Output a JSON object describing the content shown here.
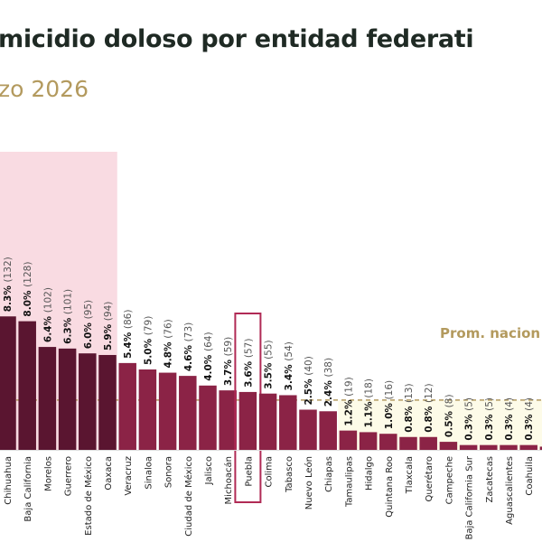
{
  "title": "micidio doloso por entidad federati",
  "subtitle": "zo 2026",
  "chart_data": {
    "type": "bar",
    "title": "micidio doloso por entidad federati",
    "subtitle": "zo 2026",
    "categories": [
      "Chihuahua",
      "Baja California",
      "Morelos",
      "Guerrero",
      "Estado de México",
      "Oaxaca",
      "Veracruz",
      "Sinaloa",
      "Sonora",
      "Ciudad de México",
      "Jalisco",
      "Michoacán",
      "Puebla",
      "Colima",
      "Tabasco",
      "Nuevo León",
      "Chiapas",
      "Tamaulipas",
      "Hidalgo",
      "Quintana Roo",
      "Tlaxcala",
      "Querétaro",
      "Campeche",
      "Baja California Sur",
      "Zacatecas",
      "Aguascalientes",
      "Coahuila",
      ""
    ],
    "values": [
      8.3,
      8.0,
      6.4,
      6.3,
      6.0,
      5.9,
      5.4,
      5.0,
      4.8,
      4.6,
      4.0,
      3.7,
      3.6,
      3.5,
      3.4,
      2.5,
      2.4,
      1.2,
      1.1,
      1.0,
      0.8,
      0.8,
      0.5,
      0.3,
      0.3,
      0.3,
      0.3,
      0.2
    ],
    "pct_labels": [
      "8.3%",
      "8.0%",
      "6.4%",
      "6.3%",
      "6.0%",
      "5.9%",
      "5.4%",
      "5.0%",
      "4.8%",
      "4.6%",
      "4.0%",
      "3.7%",
      "3.6%",
      "3.5%",
      "3.4%",
      "2.5%",
      "2.4%",
      "1.2%",
      "1.1%",
      "1.0%",
      "0.8%",
      "0.8%",
      "0.5%",
      "0.3%",
      "0.3%",
      "0.3%",
      "0.3%",
      ""
    ],
    "count_labels": [
      "(132)",
      "(128)",
      "(102)",
      "(101)",
      "(95)",
      "(94)",
      "(86)",
      "(79)",
      "(76)",
      "(73)",
      "(64)",
      "(59)",
      "(57)",
      "(55)",
      "(54)",
      "(40)",
      "(38)",
      "(19)",
      "(18)",
      "(16)",
      "(13)",
      "(12)",
      "(8)",
      "(5)",
      "(5)",
      "(4)",
      "(4)",
      ""
    ],
    "highlight_top_group": [
      "Chihuahua",
      "Baja California",
      "Morelos",
      "Guerrero",
      "Estado de México",
      "Oaxaca"
    ],
    "highlighted_category": "Puebla",
    "average": {
      "label": "Prom. nacion",
      "value": 3.1
    },
    "ylim": [
      0,
      18.5
    ],
    "grid": false,
    "colors": {
      "top_group": "#5a1530",
      "others": "#8b2346",
      "top_band": "#f9dbe2",
      "below_avg_band": "#fdfbe8",
      "average_line": "#b39a5e",
      "highlight_frame": "#b02a55"
    }
  }
}
